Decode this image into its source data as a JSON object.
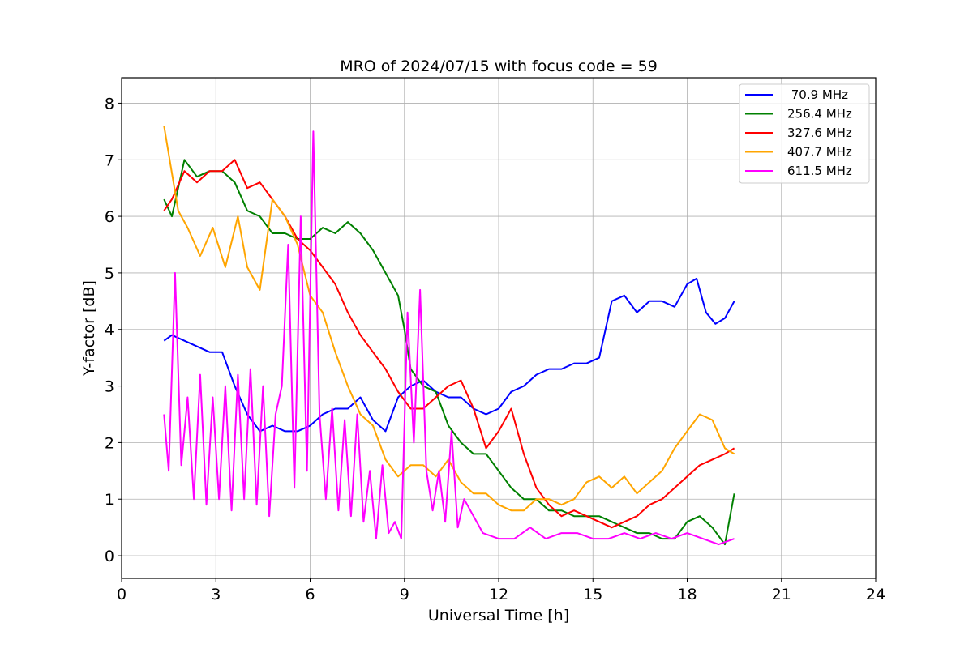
{
  "chart_data": {
    "type": "line",
    "title": "MRO of 2024/07/15 with focus code = 59",
    "xlabel": "Universal Time [h]",
    "ylabel": "Y-factor [dB]",
    "xlim": [
      0,
      24
    ],
    "ylim": [
      -0.4,
      8.45
    ],
    "xticks": [
      0,
      3,
      6,
      9,
      12,
      15,
      18,
      21,
      24
    ],
    "yticks": [
      0,
      1,
      2,
      3,
      4,
      5,
      6,
      7,
      8
    ],
    "grid": true,
    "legend_position": "top-right",
    "series": [
      {
        "name": " 70.9 MHz",
        "color": "#0000ff",
        "x": [
          1.35,
          1.6,
          2.0,
          2.4,
          2.8,
          3.2,
          3.6,
          4.0,
          4.4,
          4.8,
          5.2,
          5.6,
          6.0,
          6.4,
          6.8,
          7.2,
          7.6,
          8.0,
          8.4,
          8.8,
          9.2,
          9.6,
          10.0,
          10.4,
          10.8,
          11.2,
          11.6,
          12.0,
          12.4,
          12.8,
          13.2,
          13.6,
          14.0,
          14.4,
          14.8,
          15.2,
          15.6,
          16.0,
          16.4,
          16.8,
          17.2,
          17.6,
          18.0,
          18.3,
          18.6,
          18.9,
          19.2,
          19.5
        ],
        "values": [
          3.8,
          3.9,
          3.8,
          3.7,
          3.6,
          3.6,
          3.0,
          2.5,
          2.2,
          2.3,
          2.2,
          2.2,
          2.3,
          2.5,
          2.6,
          2.6,
          2.8,
          2.4,
          2.2,
          2.8,
          3.0,
          3.1,
          2.9,
          2.8,
          2.8,
          2.6,
          2.5,
          2.6,
          2.9,
          3.0,
          3.2,
          3.3,
          3.3,
          3.4,
          3.4,
          3.5,
          4.5,
          4.6,
          4.3,
          4.5,
          4.5,
          4.4,
          4.8,
          4.9,
          4.3,
          4.1,
          4.2,
          4.5
        ]
      },
      {
        "name": "256.4 MHz",
        "color": "#008000",
        "x": [
          1.35,
          1.6,
          2.0,
          2.4,
          2.8,
          3.2,
          3.6,
          4.0,
          4.4,
          4.8,
          5.2,
          5.6,
          6.0,
          6.4,
          6.8,
          7.2,
          7.6,
          8.0,
          8.4,
          8.8,
          9.0,
          9.2,
          9.6,
          10.0,
          10.4,
          10.8,
          11.2,
          11.6,
          12.0,
          12.4,
          12.8,
          13.2,
          13.6,
          14.0,
          14.4,
          14.8,
          15.2,
          15.6,
          16.0,
          16.4,
          16.8,
          17.2,
          17.6,
          18.0,
          18.4,
          18.8,
          19.2,
          19.5
        ],
        "values": [
          6.3,
          6.0,
          7.0,
          6.7,
          6.8,
          6.8,
          6.6,
          6.1,
          6.0,
          5.7,
          5.7,
          5.6,
          5.6,
          5.8,
          5.7,
          5.9,
          5.7,
          5.4,
          5.0,
          4.6,
          4.0,
          3.3,
          3.0,
          2.9,
          2.3,
          2.0,
          1.8,
          1.8,
          1.5,
          1.2,
          1.0,
          1.0,
          0.8,
          0.8,
          0.7,
          0.7,
          0.7,
          0.6,
          0.5,
          0.4,
          0.4,
          0.3,
          0.3,
          0.6,
          0.7,
          0.5,
          0.2,
          1.1
        ]
      },
      {
        "name": "327.6 MHz",
        "color": "#ff0000",
        "x": [
          1.35,
          1.6,
          2.0,
          2.4,
          2.8,
          3.2,
          3.6,
          4.0,
          4.4,
          4.8,
          5.2,
          5.6,
          6.0,
          6.4,
          6.8,
          7.2,
          7.6,
          8.0,
          8.4,
          8.8,
          9.2,
          9.6,
          10.0,
          10.4,
          10.8,
          11.2,
          11.6,
          12.0,
          12.4,
          12.8,
          13.2,
          13.6,
          14.0,
          14.4,
          14.8,
          15.2,
          15.6,
          16.0,
          16.4,
          16.8,
          17.2,
          17.6,
          18.0,
          18.4,
          18.8,
          19.2,
          19.5
        ],
        "values": [
          6.1,
          6.3,
          6.8,
          6.6,
          6.8,
          6.8,
          7.0,
          6.5,
          6.6,
          6.3,
          6.0,
          5.6,
          5.4,
          5.1,
          4.8,
          4.3,
          3.9,
          3.6,
          3.3,
          2.9,
          2.6,
          2.6,
          2.8,
          3.0,
          3.1,
          2.6,
          1.9,
          2.2,
          2.6,
          1.8,
          1.2,
          0.9,
          0.7,
          0.8,
          0.7,
          0.6,
          0.5,
          0.6,
          0.7,
          0.9,
          1.0,
          1.2,
          1.4,
          1.6,
          1.7,
          1.8,
          1.9
        ]
      },
      {
        "name": "407.7 MHz",
        "color": "#ffa500",
        "x": [
          1.35,
          1.5,
          1.8,
          2.1,
          2.5,
          2.9,
          3.3,
          3.7,
          4.0,
          4.4,
          4.8,
          5.2,
          5.6,
          6.0,
          6.4,
          6.8,
          7.2,
          7.6,
          8.0,
          8.4,
          8.8,
          9.2,
          9.6,
          10.0,
          10.4,
          10.8,
          11.2,
          11.6,
          12.0,
          12.4,
          12.8,
          13.2,
          13.6,
          14.0,
          14.4,
          14.8,
          15.2,
          15.6,
          16.0,
          16.4,
          16.8,
          17.2,
          17.6,
          18.0,
          18.4,
          18.8,
          19.2,
          19.5
        ],
        "values": [
          7.6,
          7.1,
          6.1,
          5.8,
          5.3,
          5.8,
          5.1,
          6.0,
          5.1,
          4.7,
          6.3,
          6.0,
          5.5,
          4.6,
          4.3,
          3.6,
          3.0,
          2.5,
          2.3,
          1.7,
          1.4,
          1.6,
          1.6,
          1.4,
          1.7,
          1.3,
          1.1,
          1.1,
          0.9,
          0.8,
          0.8,
          1.0,
          1.0,
          0.9,
          1.0,
          1.3,
          1.4,
          1.2,
          1.4,
          1.1,
          1.3,
          1.5,
          1.9,
          2.2,
          2.5,
          2.4,
          1.9,
          1.8
        ]
      },
      {
        "name": "611.5 MHz",
        "color": "#ff00ff",
        "x": [
          1.35,
          1.5,
          1.7,
          1.9,
          2.1,
          2.3,
          2.5,
          2.7,
          2.9,
          3.1,
          3.3,
          3.5,
          3.7,
          3.9,
          4.1,
          4.3,
          4.5,
          4.7,
          4.9,
          5.1,
          5.3,
          5.5,
          5.7,
          5.9,
          6.1,
          6.3,
          6.5,
          6.7,
          6.9,
          7.1,
          7.3,
          7.5,
          7.7,
          7.9,
          8.1,
          8.3,
          8.5,
          8.7,
          8.9,
          9.1,
          9.3,
          9.5,
          9.7,
          9.9,
          10.1,
          10.3,
          10.5,
          10.7,
          10.9,
          11.1,
          11.5,
          12.0,
          12.5,
          13.0,
          13.5,
          14.0,
          14.5,
          15.0,
          15.5,
          16.0,
          16.5,
          17.0,
          17.5,
          18.0,
          18.5,
          19.0,
          19.5
        ],
        "values": [
          2.5,
          1.5,
          5.0,
          1.6,
          2.8,
          1.0,
          3.2,
          0.9,
          2.8,
          1.0,
          3.0,
          0.8,
          3.2,
          1.0,
          3.3,
          0.9,
          3.0,
          0.7,
          2.5,
          3.0,
          5.5,
          1.2,
          6.0,
          1.5,
          7.5,
          2.5,
          1.0,
          2.6,
          0.8,
          2.4,
          0.7,
          2.5,
          0.6,
          1.5,
          0.3,
          1.6,
          0.4,
          0.6,
          0.3,
          4.3,
          2.0,
          4.7,
          1.5,
          0.8,
          1.5,
          0.6,
          2.2,
          0.5,
          1.0,
          0.8,
          0.4,
          0.3,
          0.3,
          0.5,
          0.3,
          0.4,
          0.4,
          0.3,
          0.3,
          0.4,
          0.3,
          0.4,
          0.3,
          0.4,
          0.3,
          0.2,
          0.3
        ]
      }
    ]
  }
}
